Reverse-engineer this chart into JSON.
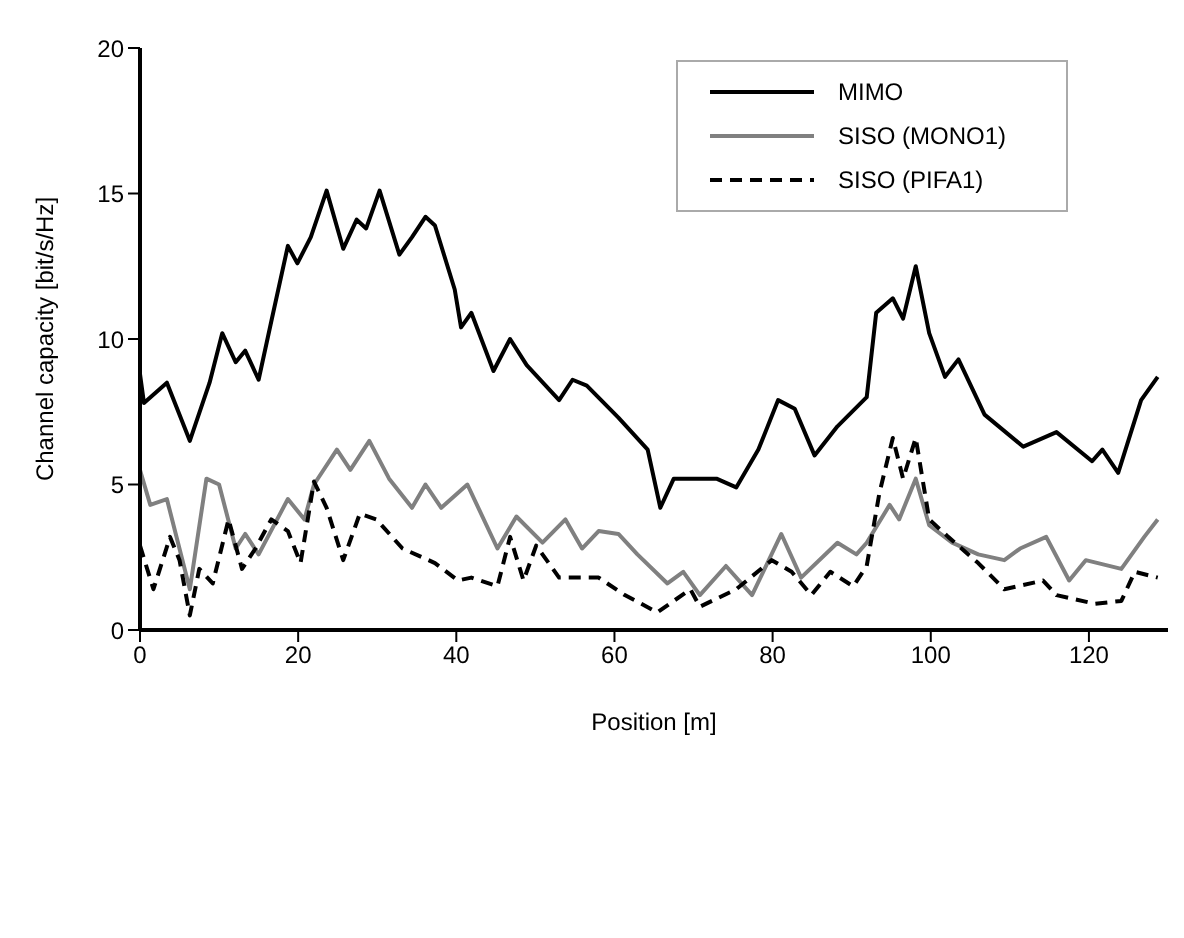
{
  "chart_data": {
    "type": "line",
    "xlabel": "Position [m]",
    "ylabel": "Channel capacity [bit/s/Hz]",
    "xlim": [
      0,
      130
    ],
    "ylim": [
      0,
      20
    ],
    "xticks": [
      0,
      20,
      40,
      60,
      80,
      100,
      120
    ],
    "yticks": [
      0,
      5,
      10,
      15,
      20
    ],
    "grid": false,
    "legend": "top right",
    "marker": "none",
    "series": [
      {
        "name": "MIMO",
        "color": "#000000",
        "line_style": "solid",
        "x": [
          0,
          0.5,
          3.4,
          6.3,
          8.8,
          10.4,
          12.1,
          13.3,
          15.0,
          16.6,
          18.7,
          19.9,
          21.6,
          23.6,
          25.7,
          27.4,
          28.6,
          30.3,
          32.8,
          34.4,
          36.1,
          37.3,
          39.8,
          40.6,
          41.9,
          44.7,
          46.8,
          48.9,
          53.0,
          54.7,
          56.5,
          60.5,
          64.2,
          65.8,
          67.5,
          72.9,
          75.4,
          78.2,
          80.7,
          82.8,
          85.3,
          88.2,
          91.9,
          93.1,
          95.2,
          96.5,
          98.1,
          99.8,
          101.8,
          103.5,
          106.8,
          111.7,
          115.9,
          120.4,
          121.7,
          123.7,
          126.6,
          128.7
        ],
        "values": [
          8.8,
          7.8,
          8.5,
          6.5,
          8.5,
          10.2,
          9.2,
          9.6,
          8.6,
          10.6,
          13.2,
          12.6,
          13.5,
          15.1,
          13.1,
          14.1,
          13.8,
          15.1,
          12.9,
          13.5,
          14.2,
          13.9,
          11.7,
          10.4,
          10.9,
          8.9,
          10.0,
          9.1,
          7.9,
          8.6,
          8.4,
          7.3,
          6.2,
          4.2,
          5.2,
          5.2,
          4.9,
          6.2,
          7.9,
          7.6,
          6.0,
          7.0,
          8.0,
          10.9,
          11.4,
          10.7,
          12.5,
          10.2,
          8.7,
          9.3,
          7.4,
          6.3,
          6.8,
          5.8,
          6.2,
          5.4,
          7.9,
          8.7
        ]
      },
      {
        "name": "SISO (MONO1)",
        "color": "#808080",
        "line_style": "solid",
        "x": [
          0,
          1.3,
          3.4,
          6.3,
          8.4,
          10.0,
          12.1,
          13.3,
          15.0,
          18.7,
          20.8,
          22.0,
          24.9,
          26.6,
          29.0,
          31.5,
          34.4,
          36.1,
          38.1,
          41.4,
          45.2,
          47.6,
          50.9,
          53.8,
          55.9,
          58.0,
          60.5,
          62.9,
          66.7,
          68.7,
          70.8,
          74.1,
          77.4,
          81.1,
          83.6,
          88.2,
          90.6,
          91.9,
          94.8,
          96.0,
          98.1,
          99.8,
          102.7,
          106.0,
          109.3,
          111.3,
          114.6,
          117.5,
          119.6,
          124.1,
          127.0,
          128.7
        ],
        "values": [
          5.5,
          4.3,
          4.5,
          1.4,
          5.2,
          5.0,
          2.8,
          3.3,
          2.6,
          4.5,
          3.8,
          5.0,
          6.2,
          5.5,
          6.5,
          5.2,
          4.2,
          5.0,
          4.2,
          5.0,
          2.8,
          3.9,
          3.0,
          3.8,
          2.8,
          3.4,
          3.3,
          2.6,
          1.6,
          2.0,
          1.2,
          2.2,
          1.2,
          3.3,
          1.8,
          3.0,
          2.6,
          3.0,
          4.3,
          3.8,
          5.2,
          3.6,
          3.0,
          2.6,
          2.4,
          2.8,
          3.2,
          1.7,
          2.4,
          2.1,
          3.2,
          3.8
        ]
      },
      {
        "name": "SISO (PIFA1)",
        "color": "#000000",
        "line_style": "dashed",
        "x": [
          0,
          1.7,
          3.8,
          5.0,
          6.3,
          7.5,
          9.2,
          11.2,
          12.9,
          14.6,
          16.6,
          18.7,
          20.3,
          22.0,
          23.6,
          25.7,
          27.8,
          29.9,
          33.2,
          37.3,
          40.2,
          41.9,
          45.2,
          46.8,
          48.5,
          50.1,
          53.0,
          58.0,
          61.3,
          63.4,
          65.4,
          69.6,
          70.8,
          75.4,
          79.9,
          82.4,
          84.9,
          87.3,
          90.2,
          91.9,
          93.5,
          95.2,
          96.5,
          98.1,
          99.8,
          102.2,
          106.0,
          109.3,
          114.2,
          115.9,
          120.8,
          124.1,
          125.8,
          128.7
        ],
        "values": [
          2.9,
          1.4,
          3.2,
          2.4,
          0.5,
          2.1,
          1.6,
          3.8,
          2.1,
          2.8,
          3.8,
          3.4,
          2.3,
          5.1,
          4.2,
          2.4,
          4.0,
          3.8,
          2.8,
          2.3,
          1.7,
          1.8,
          1.5,
          3.2,
          1.7,
          2.9,
          1.8,
          1.8,
          1.2,
          0.9,
          0.6,
          1.4,
          0.8,
          1.4,
          2.4,
          2.0,
          1.2,
          2.0,
          1.5,
          2.2,
          4.7,
          6.6,
          5.2,
          6.6,
          3.8,
          3.2,
          2.3,
          1.4,
          1.7,
          1.2,
          0.9,
          1.0,
          2.0,
          1.8
        ]
      }
    ]
  }
}
